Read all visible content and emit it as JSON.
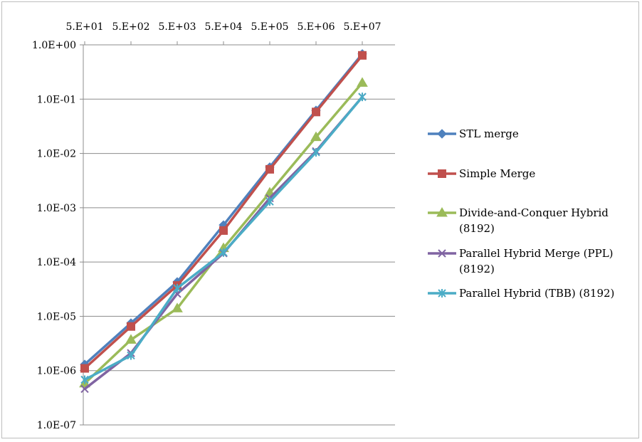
{
  "chart_data": {
    "type": "line",
    "title": "",
    "xlabel": "",
    "ylabel": "",
    "x_scale": "log",
    "y_scale": "log",
    "x_ticks": [
      "5.E+01",
      "5.E+02",
      "5.E+03",
      "5.E+04",
      "5.E+05",
      "5.E+06",
      "5.E+07"
    ],
    "x_tick_values": [
      50,
      500,
      5000,
      50000,
      500000,
      5000000,
      50000000
    ],
    "y_ticks": [
      "1.0E-07",
      "1.0E-06",
      "1.0E-05",
      "1.0E-04",
      "1.0E-03",
      "1.0E-02",
      "1.0E-01",
      "1.0E+00"
    ],
    "y_tick_values": [
      1e-07,
      1e-06,
      1e-05,
      0.0001,
      0.001,
      0.01,
      0.1,
      1
    ],
    "ylim": [
      1e-07,
      1
    ],
    "grid": "horizontal",
    "x_axis_position": "top",
    "legend_position": "right",
    "x": [
      50,
      500,
      5000,
      50000,
      500000,
      5000000,
      50000000
    ],
    "series": [
      {
        "name": "STL merge",
        "label_lines": [
          "STL merge"
        ],
        "color": "#4f81bd",
        "marker": "diamond",
        "values": [
          1.3e-06,
          7.5e-06,
          4.3e-05,
          0.00048,
          0.0056,
          0.062,
          0.68
        ]
      },
      {
        "name": "Simple Merge",
        "label_lines": [
          "Simple Merge"
        ],
        "color": "#c0504d",
        "marker": "square",
        "values": [
          1.1e-06,
          6.5e-06,
          3.7e-05,
          0.00038,
          0.0051,
          0.058,
          0.64
        ]
      },
      {
        "name": "Divide-and-Conquer Hybrid (8192)",
        "label_lines": [
          "Divide-and-Conquer Hybrid",
          "(8192)"
        ],
        "color": "#9bbb59",
        "marker": "triangle",
        "values": [
          5.8e-07,
          3.7e-06,
          1.4e-05,
          0.00018,
          0.0019,
          0.02,
          0.2
        ]
      },
      {
        "name": "Parallel Hybrid Merge (PPL) (8192)",
        "label_lines": [
          "Parallel Hybrid Merge (PPL)",
          "(8192)"
        ],
        "color": "#8064a2",
        "marker": "x",
        "values": [
          4.6e-07,
          2.1e-06,
          2.6e-05,
          0.000145,
          0.0015,
          0.011,
          0.11
        ]
      },
      {
        "name": "Parallel Hybrid (TBB) (8192)",
        "label_lines": [
          "Parallel Hybrid (TBB) (8192)"
        ],
        "color": "#4bacc6",
        "marker": "star",
        "values": [
          6.8e-07,
          1.9e-06,
          3.3e-05,
          0.00015,
          0.0013,
          0.0105,
          0.11
        ]
      }
    ]
  }
}
